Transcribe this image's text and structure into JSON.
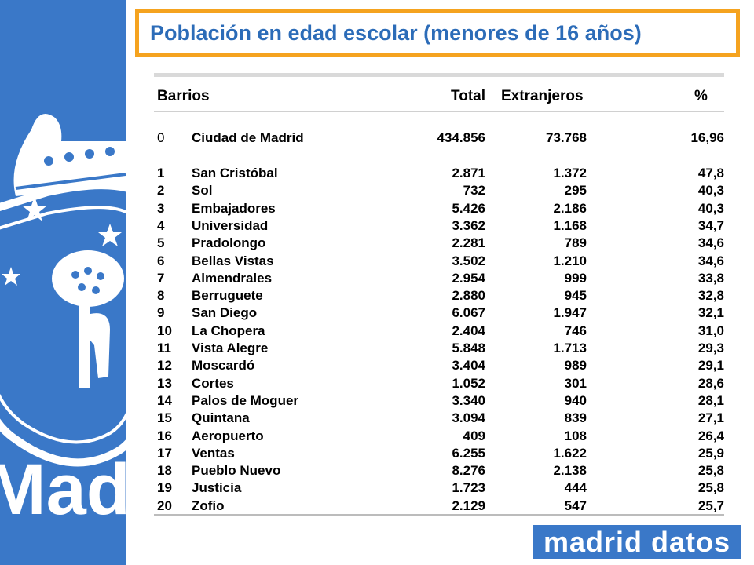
{
  "title": "Población en edad escolar (menores de 16 años)",
  "headers": {
    "barrios": "Barrios",
    "total": "Total",
    "extranjeros": "Extranjeros",
    "pct": "%"
  },
  "summary": {
    "n": "0",
    "name": "Ciudad de Madrid",
    "total": "434.856",
    "extranjeros": "73.768",
    "pct": "16,96"
  },
  "rows": [
    {
      "n": "1",
      "name": "San Cristóbal",
      "total": "2.871",
      "extranjeros": "1.372",
      "pct": "47,8"
    },
    {
      "n": "2",
      "name": "Sol",
      "total": "732",
      "extranjeros": "295",
      "pct": "40,3"
    },
    {
      "n": "3",
      "name": "Embajadores",
      "total": "5.426",
      "extranjeros": "2.186",
      "pct": "40,3"
    },
    {
      "n": "4",
      "name": "Universidad",
      "total": "3.362",
      "extranjeros": "1.168",
      "pct": "34,7"
    },
    {
      "n": "5",
      "name": "Pradolongo",
      "total": "2.281",
      "extranjeros": "789",
      "pct": "34,6"
    },
    {
      "n": "6",
      "name": "Bellas Vistas",
      "total": "3.502",
      "extranjeros": "1.210",
      "pct": "34,6"
    },
    {
      "n": "7",
      "name": "Almendrales",
      "total": "2.954",
      "extranjeros": "999",
      "pct": "33,8"
    },
    {
      "n": "8",
      "name": "Berruguete",
      "total": "2.880",
      "extranjeros": "945",
      "pct": "32,8"
    },
    {
      "n": "9",
      "name": "San Diego",
      "total": "6.067",
      "extranjeros": "1.947",
      "pct": "32,1"
    },
    {
      "n": "10",
      "name": "La Chopera",
      "total": "2.404",
      "extranjeros": "746",
      "pct": "31,0"
    },
    {
      "n": "11",
      "name": "Vista Alegre",
      "total": "5.848",
      "extranjeros": "1.713",
      "pct": "29,3"
    },
    {
      "n": "12",
      "name": "Moscardó",
      "total": "3.404",
      "extranjeros": "989",
      "pct": "29,1"
    },
    {
      "n": "13",
      "name": "Cortes",
      "total": "1.052",
      "extranjeros": "301",
      "pct": "28,6"
    },
    {
      "n": "14",
      "name": "Palos de Moguer",
      "total": "3.340",
      "extranjeros": "940",
      "pct": "28,1"
    },
    {
      "n": "15",
      "name": "Quintana",
      "total": "3.094",
      "extranjeros": "839",
      "pct": "27,1"
    },
    {
      "n": "16",
      "name": "Aeropuerto",
      "total": "409",
      "extranjeros": "108",
      "pct": "26,4"
    },
    {
      "n": "17",
      "name": "Ventas",
      "total": "6.255",
      "extranjeros": "1.622",
      "pct": "25,9"
    },
    {
      "n": "18",
      "name": "Pueblo Nuevo",
      "total": "8.276",
      "extranjeros": "2.138",
      "pct": "25,8"
    },
    {
      "n": "19",
      "name": "Justicia",
      "total": "1.723",
      "extranjeros": "444",
      "pct": "25,8"
    },
    {
      "n": "20",
      "name": "Zofío",
      "total": "2.129",
      "extranjeros": "547",
      "pct": "25,7"
    }
  ],
  "sidebar_text": "Madrid",
  "logo_text": "madrid datos",
  "colors": {
    "brand_blue": "#3a78c8",
    "title_blue": "#2c6cb8",
    "frame_orange": "#f5a31f"
  }
}
